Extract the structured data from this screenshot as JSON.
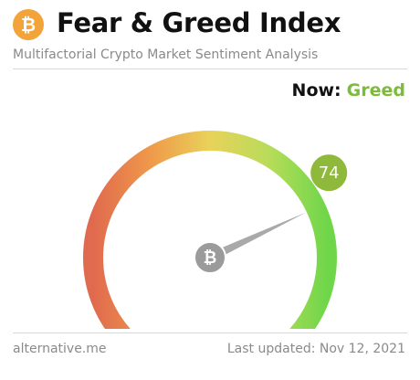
{
  "header": {
    "logo_icon": "bitcoin-icon",
    "title": "Fear & Greed Index",
    "subtitle": "Multifactorial Crypto Market Sentiment Analysis"
  },
  "status": {
    "now_label": "Now:",
    "now_value": "Greed",
    "now_color": "#7dbb3c"
  },
  "gauge": {
    "value": 74,
    "min": 0,
    "max": 100,
    "value_label": "74",
    "badge_color": "#8fb93a",
    "hub_icon": "bitcoin-icon",
    "gradient_colors": [
      "#e06a4e",
      "#ef9a4a",
      "#e9d25a",
      "#b8dc5a",
      "#6fd64a"
    ]
  },
  "footer": {
    "source": "alternative.me",
    "last_updated": "Last updated: Nov 12, 2021"
  },
  "colors": {
    "bitcoin_orange": "#f2a33a"
  }
}
